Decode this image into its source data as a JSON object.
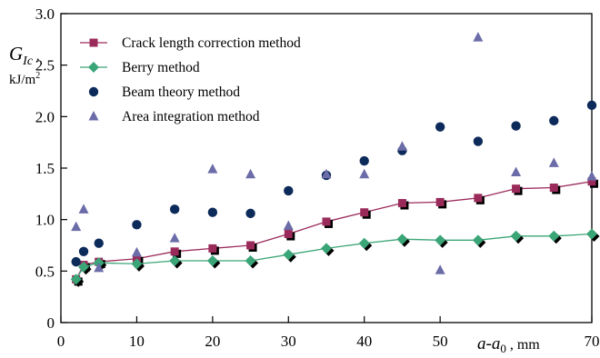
{
  "chart_data": {
    "type": "scatter",
    "xlim": [
      0,
      70
    ],
    "ylim": [
      0,
      3.0
    ],
    "x_ticks": [
      "0",
      "10",
      "20",
      "30",
      "40",
      "50",
      "70"
    ],
    "x_tick_values": [
      0,
      10,
      20,
      30,
      40,
      50,
      70
    ],
    "y_ticks": [
      "0",
      "0.5",
      "1.0",
      "1.5",
      "2.0",
      "2.5",
      "3.0"
    ],
    "y_tick_values": [
      0,
      0.5,
      1.0,
      1.5,
      2.0,
      2.5,
      3.0
    ],
    "ylabel": {
      "symbol": "G",
      "subscript": "Ic",
      "suffix": " ,",
      "unit": "kJ/m",
      "unit_power": "2"
    },
    "xlabel": {
      "a": "a",
      "dash": "-",
      "a0": "a",
      "sub0": "0",
      "unit": " , mm"
    },
    "grid": false,
    "legend_position": "top-left",
    "series": [
      {
        "name": "Crack length correction method",
        "marker": "square",
        "color": "#9a2a5a",
        "line": true,
        "shadow": true,
        "x": [
          2,
          3,
          5,
          10,
          15,
          20,
          25,
          30,
          35,
          40,
          45,
          50,
          55,
          60,
          65,
          70
        ],
        "y": [
          0.42,
          0.56,
          0.59,
          0.62,
          0.69,
          0.72,
          0.75,
          0.86,
          0.98,
          1.07,
          1.16,
          1.17,
          1.21,
          1.3,
          1.31,
          1.37
        ]
      },
      {
        "name": "Berry method",
        "marker": "diamond",
        "color": "#3aa577",
        "line": true,
        "shadow": true,
        "x": [
          2,
          3,
          5,
          10,
          15,
          20,
          25,
          30,
          35,
          40,
          45,
          50,
          55,
          60,
          65,
          70
        ],
        "y": [
          0.42,
          0.54,
          0.58,
          0.57,
          0.6,
          0.6,
          0.6,
          0.66,
          0.72,
          0.77,
          0.81,
          0.8,
          0.8,
          0.84,
          0.84,
          0.86
        ]
      },
      {
        "name": "Beam theory method",
        "marker": "circle",
        "color": "#0d2b5a",
        "line": false,
        "shadow": false,
        "x": [
          2,
          3,
          5,
          10,
          15,
          20,
          25,
          30,
          35,
          40,
          45,
          50,
          55,
          60,
          65,
          70
        ],
        "y": [
          0.59,
          0.69,
          0.77,
          0.95,
          1.1,
          1.07,
          1.06,
          1.28,
          1.43,
          1.57,
          1.67,
          1.9,
          1.76,
          1.91,
          1.96,
          2.11
        ]
      },
      {
        "name": "Area integration method",
        "marker": "triangle",
        "color": "#6b6ca8",
        "line": false,
        "shadow": false,
        "x": [
          2,
          3,
          5,
          10,
          15,
          20,
          25,
          30,
          35,
          40,
          45,
          50,
          55,
          60,
          65,
          70
        ],
        "y": [
          0.93,
          1.1,
          0.53,
          0.68,
          0.82,
          1.49,
          1.44,
          0.94,
          1.44,
          1.44,
          1.71,
          0.51,
          2.77,
          1.46,
          1.55,
          1.42
        ]
      }
    ]
  }
}
